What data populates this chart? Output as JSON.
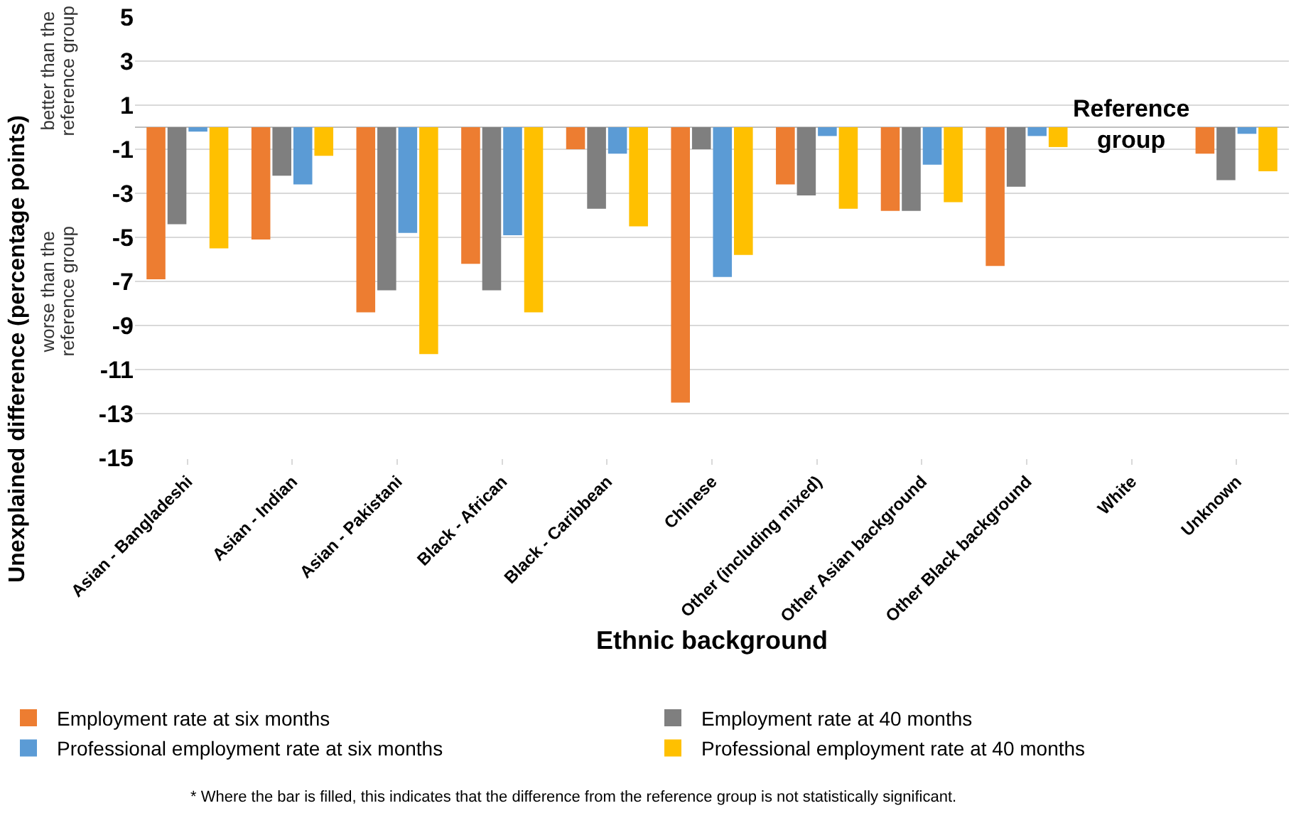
{
  "chart_data": {
    "type": "bar",
    "xlabel": "Ethnic background",
    "ylabel": "Unexplained difference (percentage points)",
    "categories": [
      "Asian - Bangladeshi",
      "Asian - Indian",
      "Asian - Pakistani",
      "Black - African",
      "Black - Caribbean",
      "Chinese",
      "Other (including mixed)",
      "Other Asian background",
      "Other Black background",
      "White",
      "Unknown"
    ],
    "series": [
      {
        "name": "Employment rate at six months",
        "color": "#ed7d31",
        "values": [
          -6.9,
          -5.1,
          -8.4,
          -6.2,
          -1.0,
          -12.5,
          -2.6,
          -3.8,
          -6.3,
          null,
          -1.2
        ]
      },
      {
        "name": "Employment rate at 40 months",
        "color": "#7f7f7f",
        "values": [
          -4.4,
          -2.2,
          -7.4,
          -7.4,
          -3.7,
          -1.0,
          -3.1,
          -3.8,
          -2.7,
          null,
          -2.4
        ]
      },
      {
        "name": "Professional employment rate at six months",
        "color": "#5b9bd5",
        "values": [
          -0.2,
          -2.6,
          -4.8,
          -4.9,
          -1.2,
          -6.8,
          -0.4,
          -1.7,
          -0.4,
          null,
          -0.3
        ]
      },
      {
        "name": "Professional employment rate at 40 months",
        "color": "#ffc000",
        "values": [
          -5.5,
          -1.3,
          -10.3,
          -8.4,
          -4.5,
          -5.8,
          -3.7,
          -3.4,
          -0.9,
          null,
          -2.0
        ]
      }
    ],
    "ylim": [
      -15,
      5
    ],
    "yticks": [
      -15,
      -13,
      -11,
      -9,
      -7,
      -5,
      -3,
      -1,
      1,
      3,
      5
    ],
    "grid": "y",
    "legend": "bottom",
    "annotations": [
      "Reference group",
      "better than the reference group",
      "worse than the reference group",
      "* Where the bar is filled, this indicates that the difference from the reference group is not statistically significant."
    ]
  }
}
